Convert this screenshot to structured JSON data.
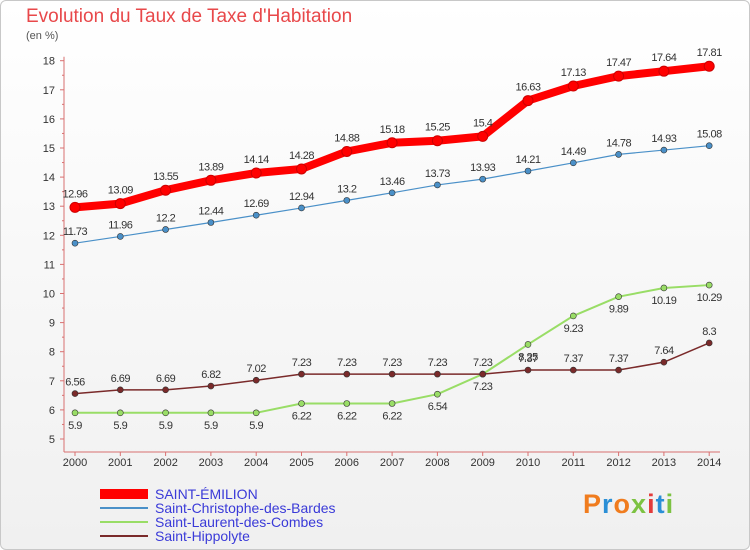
{
  "title": "Evolution du Taux de Taxe d'Habitation",
  "subtitle": "(en %)",
  "logo": {
    "text": "Proxiti",
    "colors": [
      "#f07c1e",
      "#2b8fd6",
      "#f07c1e",
      "#7cc242",
      "#e33b3b",
      "#2b8fd6",
      "#7cc242"
    ]
  },
  "chart_data": {
    "type": "line",
    "title": "Evolution du Taux de Taxe d'Habitation",
    "ylabel": "(en %)",
    "xlabel": "",
    "x": [
      "2000",
      "2001",
      "2002",
      "2003",
      "2004",
      "2005",
      "2006",
      "2007",
      "2008",
      "2009",
      "2010",
      "2011",
      "2012",
      "2013",
      "2014"
    ],
    "ylim": [
      5,
      18
    ],
    "yticks": [
      5,
      6,
      7,
      8,
      9,
      10,
      11,
      12,
      13,
      14,
      15,
      16,
      17,
      18
    ],
    "grid": false,
    "legend_position": "bottom-left",
    "series": [
      {
        "name": "SAINT-ÉMILION",
        "color": "#ff0000",
        "values": [
          12.96,
          13.09,
          13.55,
          13.89,
          14.14,
          14.28,
          14.88,
          15.18,
          15.25,
          15.4,
          16.63,
          17.13,
          17.47,
          17.64,
          17.81
        ],
        "labels": [
          "12.96",
          "13.09",
          "13.55",
          "13.89",
          "14.14",
          "14.28",
          "14.88",
          "15.18",
          "15.25",
          "15.4",
          "16.63",
          "17.13",
          "17.47",
          "17.64",
          "17.81"
        ]
      },
      {
        "name": "Saint-Christophe-des-Bardes",
        "color": "#4a90c8",
        "values": [
          11.73,
          11.96,
          12.2,
          12.44,
          12.69,
          12.94,
          13.2,
          13.46,
          13.73,
          13.93,
          14.21,
          14.49,
          14.78,
          14.93,
          15.08
        ],
        "labels": [
          "11.73",
          "11.96",
          "12.2",
          "12.44",
          "12.69",
          "12.94",
          "13.2",
          "13.46",
          "13.73",
          "13.93",
          "14.21",
          "14.49",
          "14.78",
          "14.93",
          "15.08"
        ]
      },
      {
        "name": "Saint-Laurent-des-Combes",
        "color": "#99dd66",
        "values": [
          5.9,
          5.9,
          5.9,
          5.9,
          5.9,
          6.22,
          6.22,
          6.22,
          6.54,
          7.23,
          8.25,
          9.23,
          9.89,
          10.19,
          10.29
        ],
        "labels": [
          "5.9",
          "5.9",
          "5.9",
          "5.9",
          "5.9",
          "6.22",
          "6.22",
          "6.22",
          "6.54",
          "7.23",
          "8.25",
          "9.23",
          "9.89",
          "10.19",
          "10.29"
        ]
      },
      {
        "name": "Saint-Hippolyte",
        "color": "#7a2a2a",
        "values": [
          6.56,
          6.69,
          6.69,
          6.82,
          7.02,
          7.23,
          7.23,
          7.23,
          7.23,
          7.23,
          7.37,
          7.37,
          7.37,
          7.64,
          8.3
        ],
        "labels": [
          "6.56",
          "6.69",
          "6.69",
          "6.82",
          "7.02",
          "7.23",
          "7.23",
          "7.23",
          "7.23",
          "7.23",
          "7.37",
          "7.37",
          "7.37",
          "7.64",
          "8.3"
        ]
      }
    ]
  }
}
